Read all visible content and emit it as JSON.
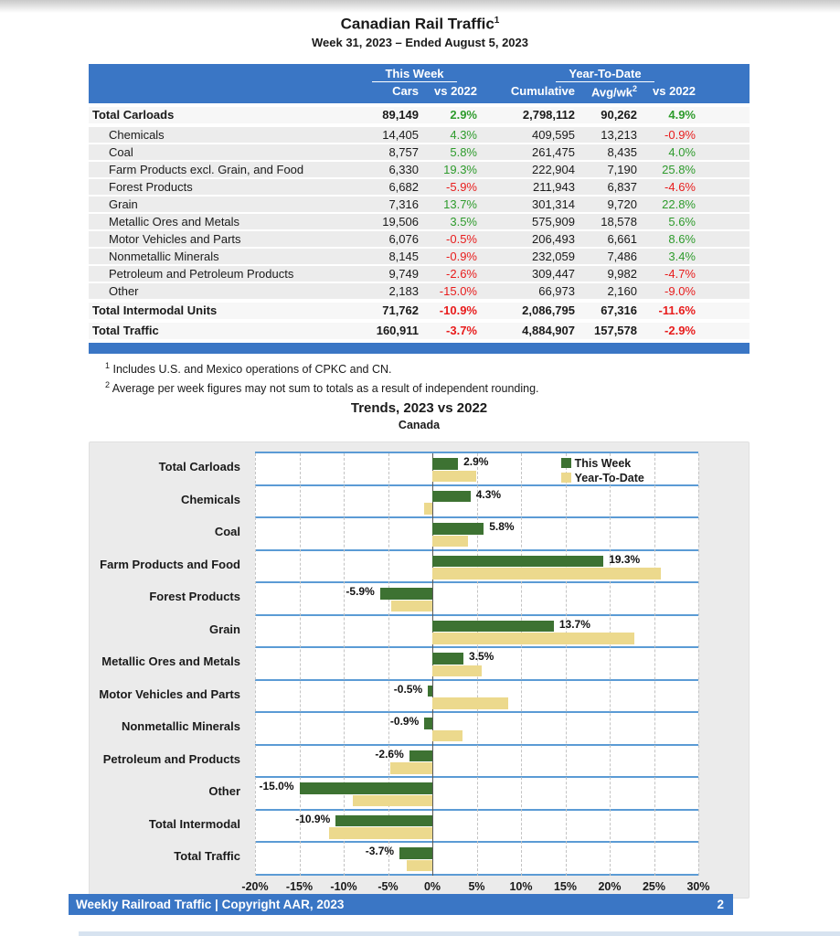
{
  "page": {
    "title": "Canadian Rail Traffic",
    "title_sup": "1",
    "subtitle": "Week 31, 2023 – Ended August 5, 2023"
  },
  "table": {
    "group_headers": {
      "this_week": "This Week",
      "ytd": "Year-To-Date"
    },
    "columns": [
      "Cars",
      "vs 2022",
      "Cumulative",
      "Avg/wk",
      "vs 2022"
    ],
    "avgwk_sup": "2",
    "rows": [
      {
        "label": "Total Carloads",
        "bold": true,
        "cars": "89,149",
        "cars_vs": "2.9%",
        "cumulative": "2,798,112",
        "avg_wk": "90,262",
        "ytd_vs": "4.9%"
      },
      {
        "label": "Chemicals",
        "bold": false,
        "cars": "14,405",
        "cars_vs": "4.3%",
        "cumulative": "409,595",
        "avg_wk": "13,213",
        "ytd_vs": "-0.9%"
      },
      {
        "label": "Coal",
        "bold": false,
        "cars": "8,757",
        "cars_vs": "5.8%",
        "cumulative": "261,475",
        "avg_wk": "8,435",
        "ytd_vs": "4.0%"
      },
      {
        "label": "Farm Products excl. Grain, and Food",
        "bold": false,
        "cars": "6,330",
        "cars_vs": "19.3%",
        "cumulative": "222,904",
        "avg_wk": "7,190",
        "ytd_vs": "25.8%"
      },
      {
        "label": "Forest Products",
        "bold": false,
        "cars": "6,682",
        "cars_vs": "-5.9%",
        "cumulative": "211,943",
        "avg_wk": "6,837",
        "ytd_vs": "-4.6%"
      },
      {
        "label": "Grain",
        "bold": false,
        "cars": "7,316",
        "cars_vs": "13.7%",
        "cumulative": "301,314",
        "avg_wk": "9,720",
        "ytd_vs": "22.8%"
      },
      {
        "label": "Metallic Ores and Metals",
        "bold": false,
        "cars": "19,506",
        "cars_vs": "3.5%",
        "cumulative": "575,909",
        "avg_wk": "18,578",
        "ytd_vs": "5.6%"
      },
      {
        "label": "Motor Vehicles and Parts",
        "bold": false,
        "cars": "6,076",
        "cars_vs": "-0.5%",
        "cumulative": "206,493",
        "avg_wk": "6,661",
        "ytd_vs": "8.6%"
      },
      {
        "label": "Nonmetallic Minerals",
        "bold": false,
        "cars": "8,145",
        "cars_vs": "-0.9%",
        "cumulative": "232,059",
        "avg_wk": "7,486",
        "ytd_vs": "3.4%"
      },
      {
        "label": "Petroleum and Petroleum Products",
        "bold": false,
        "cars": "9,749",
        "cars_vs": "-2.6%",
        "cumulative": "309,447",
        "avg_wk": "9,982",
        "ytd_vs": "-4.7%"
      },
      {
        "label": "Other",
        "bold": false,
        "cars": "2,183",
        "cars_vs": "-15.0%",
        "cumulative": "66,973",
        "avg_wk": "2,160",
        "ytd_vs": "-9.0%"
      },
      {
        "label": "Total Intermodal Units",
        "bold": true,
        "cars": "71,762",
        "cars_vs": "-10.9%",
        "cumulative": "2,086,795",
        "avg_wk": "67,316",
        "ytd_vs": "-11.6%"
      },
      {
        "label": "Total Traffic",
        "bold": true,
        "cars": "160,911",
        "cars_vs": "-3.7%",
        "cumulative": "4,884,907",
        "avg_wk": "157,578",
        "ytd_vs": "-2.9%"
      }
    ]
  },
  "footnotes": [
    {
      "sup": "1",
      "text": "Includes U.S. and Mexico operations of CPKC and CN."
    },
    {
      "sup": "2",
      "text": "Average per week figures may not sum to totals as a result of independent rounding."
    }
  ],
  "chart_data": {
    "type": "bar",
    "orientation": "horizontal",
    "title": "Trends, 2023 vs 2022",
    "subtitle": "Canada",
    "categories": [
      "Total Carloads",
      "Chemicals",
      "Coal",
      "Farm Products and Food",
      "Forest Products",
      "Grain",
      "Metallic Ores and Metals",
      "Motor Vehicles and Parts",
      "Nonmetallic Minerals",
      "Petroleum and Products",
      "Other",
      "Total Intermodal",
      "Total Traffic"
    ],
    "series": [
      {
        "name": "This Week",
        "color": "#3d7232",
        "values": [
          2.9,
          4.3,
          5.8,
          19.3,
          -5.9,
          13.7,
          3.5,
          -0.5,
          -0.9,
          -2.6,
          -15.0,
          -10.9,
          -3.7
        ]
      },
      {
        "name": "Year-To-Date",
        "color": "#ecd98d",
        "values": [
          4.9,
          -0.9,
          4.0,
          25.8,
          -4.6,
          22.8,
          5.6,
          8.6,
          3.4,
          -4.7,
          -9.0,
          -11.6,
          -2.9
        ]
      }
    ],
    "bar_labels": [
      "2.9%",
      "4.3%",
      "5.8%",
      "19.3%",
      "-5.9%",
      "13.7%",
      "3.5%",
      "-0.5%",
      "-0.9%",
      "-2.6%",
      "-15.0%",
      "-10.9%",
      "-3.7%"
    ],
    "xlim": [
      -20,
      30
    ],
    "x_ticks": [
      "-20%",
      "-15%",
      "-10%",
      "-5%",
      "0%",
      "5%",
      "10%",
      "15%",
      "20%",
      "25%",
      "30%"
    ],
    "legend_position": "top-right",
    "grid": "dashed-vertical"
  },
  "footer": {
    "left": "Weekly Railroad Traffic | Copyright AAR, 2023",
    "page": "2"
  },
  "colors": {
    "header_blue": "#3a76c5",
    "positive_green": "#2e9b2c",
    "negative_red": "#e81c1c",
    "bar_green": "#3d7232",
    "bar_yellow": "#ecd98d",
    "grid_blue": "#5b9bd5",
    "chart_bg": "#ebebeb"
  }
}
